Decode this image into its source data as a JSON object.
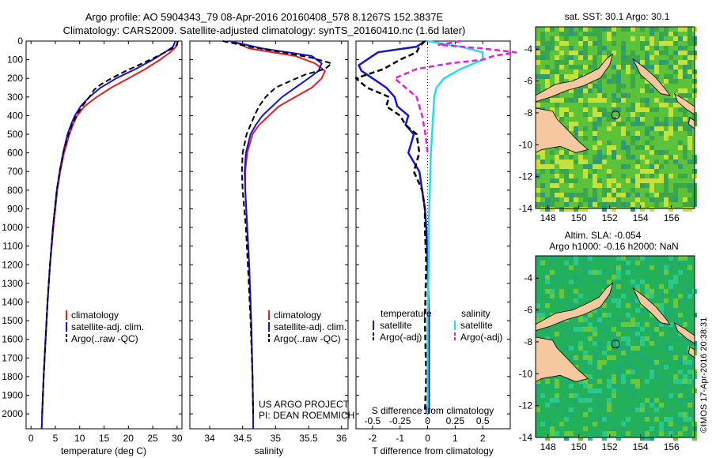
{
  "header": {
    "line1": "Argo profile: AO 5904343_79 08-Apr-2016 20160408_578 8.1267S 152.3837E",
    "line2": "Climatology: CARS2009. Satellite-adjusted climatology: synTS_20160410.nc (1.6d later)"
  },
  "colors": {
    "climatology": "#e02020",
    "satellite": "#1414d2",
    "argo": "#000000",
    "sal_satellite": "#22e0e0",
    "sal_argo": "#e020e0",
    "land": "#f5c8a0"
  },
  "project": {
    "line1": "US ARGO PROJECT",
    "line2": "PI: DEAN ROEMMICH"
  },
  "credit": "©IMOS 17-Apr-2016 20:38:31",
  "chart_data": [
    {
      "type": "line",
      "name": "temperature",
      "xlabel": "temperature (deg C)",
      "xlim": [
        -1,
        31
      ],
      "ylim": [
        2080,
        0
      ],
      "xticks": [
        0,
        5,
        10,
        15,
        20,
        25,
        30
      ],
      "yticks": [
        0,
        100,
        200,
        300,
        400,
        500,
        600,
        700,
        800,
        900,
        1000,
        1100,
        1200,
        1300,
        1400,
        1500,
        1600,
        1700,
        1800,
        1900,
        2000
      ],
      "legend": [
        "climatology",
        "satellite-adj. clim.",
        "Argo(..raw -QC)"
      ],
      "series": [
        {
          "name": "climatology",
          "style": "solid",
          "color": "#e02020",
          "depth": [
            0,
            30,
            60,
            100,
            150,
            200,
            250,
            300,
            350,
            400,
            450,
            500,
            600,
            700,
            800,
            1000,
            1200,
            1400,
            1600,
            1800,
            2000,
            2080
          ],
          "values": [
            30.2,
            29.8,
            28.6,
            26.5,
            23.5,
            20.0,
            16.5,
            13.5,
            11.0,
            9.5,
            8.6,
            7.9,
            6.8,
            6.0,
            5.4,
            4.6,
            3.9,
            3.4,
            3.0,
            2.6,
            2.3,
            2.2
          ]
        },
        {
          "name": "satellite-adj. clim.",
          "style": "solid",
          "color": "#1414d2",
          "depth": [
            0,
            30,
            60,
            100,
            150,
            200,
            250,
            300,
            350,
            400,
            450,
            500,
            600,
            700,
            800,
            1000,
            1200,
            1400,
            1600,
            1800,
            2000,
            2080
          ],
          "values": [
            29.6,
            29.2,
            27.5,
            25.0,
            21.5,
            17.5,
            14.3,
            12.0,
            10.2,
            9.0,
            8.2,
            7.5,
            6.6,
            5.9,
            5.3,
            4.5,
            3.9,
            3.4,
            3.0,
            2.6,
            2.3,
            2.2
          ]
        },
        {
          "name": "Argo(..raw -QC)",
          "style": "dashed",
          "color": "#000000",
          "depth": [
            0,
            20,
            40,
            70,
            100,
            130,
            160,
            200,
            230,
            260,
            300,
            350,
            400,
            450,
            500,
            600,
            700,
            800,
            1000,
            1200,
            1400,
            1600,
            1800,
            2000
          ],
          "values": [
            30.1,
            30.0,
            29.0,
            26.8,
            24.5,
            22.0,
            19.5,
            16.5,
            14.5,
            13.0,
            12.0,
            10.5,
            9.3,
            8.4,
            7.7,
            6.6,
            5.9,
            5.3,
            4.5,
            3.9,
            3.4,
            3.0,
            2.6,
            2.3
          ]
        }
      ]
    },
    {
      "type": "line",
      "name": "salinity",
      "xlabel": "salinity",
      "xlim": [
        33.7,
        36.1
      ],
      "ylim": [
        2080,
        0
      ],
      "xticks": [
        34,
        34.5,
        35,
        35.5,
        36
      ],
      "legend": [
        "climatology",
        "satellite-adj. clim.",
        "Argo(..raw -QC)"
      ],
      "series": [
        {
          "name": "climatology",
          "style": "solid",
          "color": "#e02020",
          "depth": [
            0,
            40,
            80,
            120,
            160,
            200,
            250,
            300,
            350,
            400,
            450,
            500,
            600,
            700,
            800,
            1000,
            1200,
            1500,
            1800,
            2000,
            2080
          ],
          "values": [
            34.35,
            34.6,
            35.3,
            35.6,
            35.75,
            35.7,
            35.55,
            35.3,
            35.05,
            34.9,
            34.75,
            34.65,
            34.57,
            34.54,
            34.54,
            34.57,
            34.6,
            34.63,
            34.65,
            34.66,
            34.66
          ]
        },
        {
          "name": "satellite-adj. clim.",
          "style": "solid",
          "color": "#1414d2",
          "depth": [
            0,
            40,
            80,
            120,
            160,
            200,
            250,
            300,
            350,
            400,
            450,
            500,
            600,
            700,
            800,
            1000,
            1200,
            1500,
            1800,
            2000,
            2080
          ],
          "values": [
            34.3,
            34.8,
            35.55,
            35.7,
            35.65,
            35.5,
            35.3,
            35.1,
            34.95,
            34.8,
            34.7,
            34.62,
            34.55,
            34.53,
            34.54,
            34.57,
            34.6,
            34.63,
            34.65,
            34.66,
            34.66
          ]
        },
        {
          "name": "Argo(..raw -QC)",
          "style": "dashed",
          "color": "#000000",
          "depth": [
            0,
            30,
            60,
            90,
            120,
            150,
            180,
            210,
            250,
            300,
            350,
            400,
            450,
            500,
            550,
            600,
            700,
            800,
            1000,
            1200,
            1500,
            1800,
            2000
          ],
          "values": [
            34.2,
            34.6,
            35.1,
            35.55,
            35.85,
            35.75,
            35.45,
            35.25,
            35.0,
            34.85,
            34.75,
            34.68,
            34.62,
            34.56,
            34.53,
            34.5,
            34.49,
            34.5,
            34.55,
            34.58,
            34.62,
            34.65,
            34.66
          ]
        }
      ]
    },
    {
      "type": "line",
      "name": "differences",
      "xlabel": "T difference from climatology",
      "xlabel_top": "S difference from climatology",
      "xlim": [
        -2.6,
        3.0
      ],
      "ylim": [
        2080,
        0
      ],
      "xticks": [
        -2,
        -1,
        0,
        1,
        2
      ],
      "xticks_top": [
        -0.5,
        -0.25,
        0,
        0.25,
        0.5
      ],
      "legend_temperature": {
        "title": "temperature",
        "items": [
          "satellite",
          "Argo(-adj)"
        ]
      },
      "legend_salinity": {
        "title": "salinity",
        "items": [
          "satellite",
          "Argo(-adj)"
        ]
      },
      "series": [
        {
          "name": "T satellite",
          "style": "solid",
          "color": "#1414d2",
          "depth": [
            0,
            30,
            60,
            100,
            130,
            160,
            200,
            250,
            300,
            350,
            400,
            450,
            500,
            600,
            700,
            800,
            900,
            1000,
            1200,
            1500,
            1800,
            2000
          ],
          "values": [
            -0.1,
            -0.4,
            -1.8,
            -2.2,
            -2.5,
            -2.4,
            -2.0,
            -1.5,
            -1.2,
            -1.1,
            -0.7,
            -0.8,
            -0.5,
            -0.7,
            -0.3,
            -0.2,
            -0.1,
            -0.05,
            0.0,
            0.05,
            0.05,
            0.05
          ]
        },
        {
          "name": "T Argo(-adj)",
          "style": "dashed",
          "color": "#000000",
          "depth": [
            0,
            30,
            60,
            100,
            150,
            200,
            250,
            300,
            350,
            400,
            450,
            500,
            600,
            700,
            800,
            900,
            1000,
            1200,
            1500,
            1800,
            2000
          ],
          "values": [
            -0.1,
            -0.3,
            -0.4,
            -1.0,
            -1.6,
            -2.6,
            -2.2,
            -1.4,
            -1.5,
            -1.0,
            -0.8,
            -0.4,
            -0.3,
            -0.5,
            -0.2,
            -0.1,
            -0.1,
            -0.05,
            -0.1,
            -0.05,
            -0.1
          ]
        },
        {
          "name": "S satellite",
          "style": "solid",
          "color": "#22e0e0",
          "depth": [
            0,
            30,
            60,
            100,
            150,
            200,
            250,
            300,
            400,
            500,
            600,
            800,
            1000,
            1200,
            1500,
            1800,
            2000
          ],
          "values": [
            0.0,
            0.3,
            0.5,
            0.5,
            0.3,
            0.15,
            0.08,
            0.06,
            0.05,
            0.04,
            0.03,
            0.02,
            0.01,
            0.01,
            0.0,
            0.0,
            0.0
          ]
        },
        {
          "name": "S Argo(-adj)",
          "style": "dashed",
          "color": "#e020e0",
          "depth": [
            0,
            20,
            40,
            60,
            80,
            100,
            120,
            150,
            200,
            250,
            300,
            400,
            500,
            600
          ],
          "values": [
            0.3,
            0.1,
            0.5,
            0.8,
            0.6,
            0.5,
            0.2,
            -0.1,
            -0.3,
            -0.2,
            -0.1,
            -0.05,
            -0.02,
            0.0
          ]
        }
      ]
    },
    {
      "type": "heatmap",
      "name": "sst-map",
      "title": "sat. SST: 30.1 Argo: 30.1",
      "xlim": [
        147.2,
        157.5
      ],
      "ylim": [
        -14,
        -2.6
      ],
      "xticks": [
        148,
        150,
        152,
        154,
        156
      ],
      "yticks": [
        -4,
        -6,
        -8,
        -10,
        -12,
        -14
      ],
      "argo_position": {
        "lon": 152.38,
        "lat": -8.13
      }
    },
    {
      "type": "heatmap",
      "name": "sla-map",
      "title_line1": "Altim. SLA: -0.054",
      "title_line2": "Argo h1000: -0.16 h2000: NaN",
      "xlim": [
        147.2,
        157.5
      ],
      "ylim": [
        -14,
        -2.6
      ],
      "xticks": [
        148,
        150,
        152,
        154,
        156
      ],
      "yticks": [
        -4,
        -6,
        -8,
        -10,
        -12,
        -14
      ],
      "argo_position": {
        "lon": 152.38,
        "lat": -8.13
      }
    }
  ]
}
